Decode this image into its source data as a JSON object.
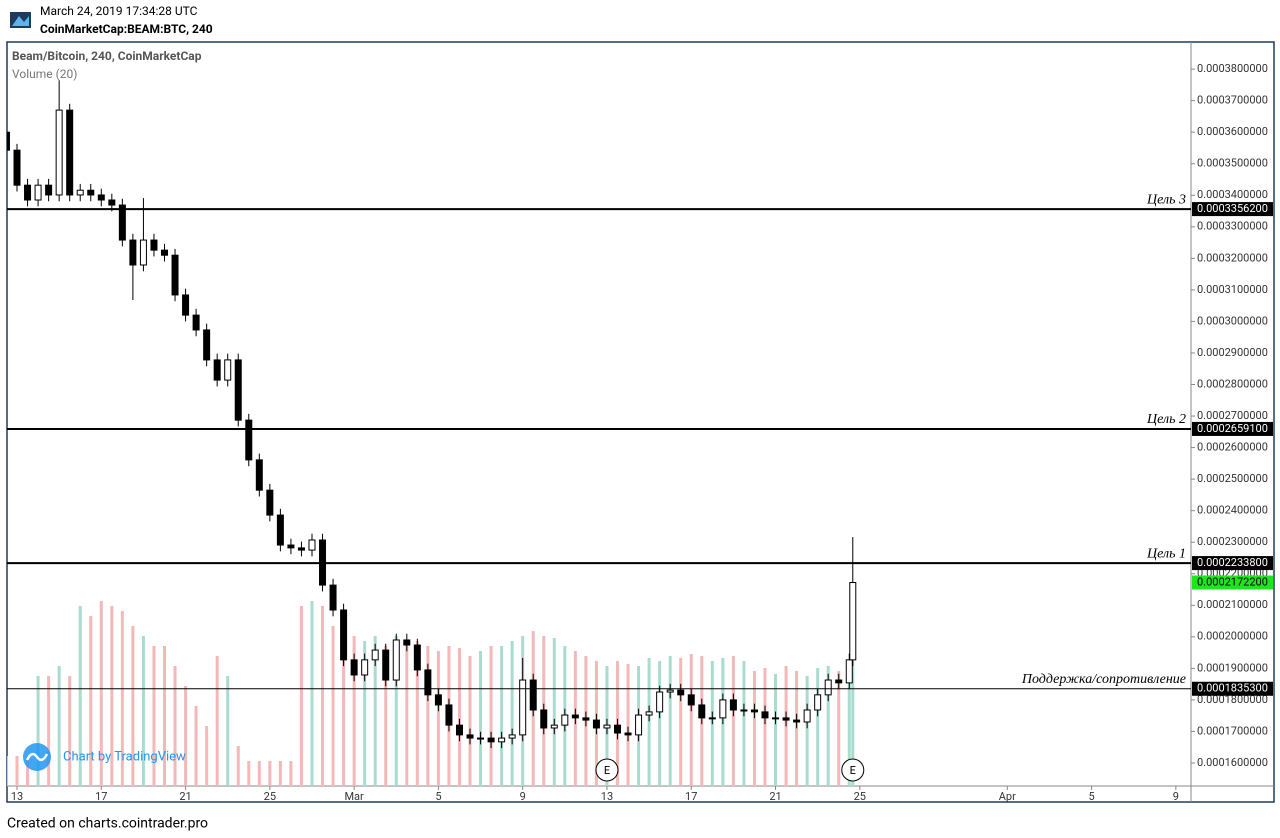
{
  "header": {
    "timestamp": "March 24, 2019 17:34:28 UTC",
    "symbol": "CoinMarketCap:BEAM:BTC, 240"
  },
  "chart_data": {
    "type": "candlestick",
    "title": "Beam/Bitcoin, 240, CoinMarketCap",
    "volume_title": "Volume (20)",
    "watermark": "Chart by TradingView",
    "x": [
      "2019-02-12 12:00",
      "2019-02-13 00:00",
      "2019-02-13 12:00",
      "2019-02-14 00:00",
      "2019-02-14 12:00",
      "2019-02-15 00:00",
      "2019-02-15 12:00",
      "2019-02-16 00:00",
      "2019-02-16 12:00",
      "2019-02-17 00:00",
      "2019-02-17 12:00",
      "2019-02-18 00:00",
      "2019-02-18 12:00",
      "2019-02-19 00:00",
      "2019-02-19 12:00",
      "2019-02-20 00:00",
      "2019-02-20 12:00",
      "2019-02-21 00:00",
      "2019-02-21 12:00",
      "2019-02-22 00:00",
      "2019-02-22 12:00",
      "2019-02-23 00:00",
      "2019-02-23 12:00",
      "2019-02-24 00:00",
      "2019-02-24 12:00",
      "2019-02-25 00:00",
      "2019-02-25 12:00",
      "2019-02-26 00:00",
      "2019-02-26 12:00",
      "2019-02-27 00:00",
      "2019-02-27 12:00",
      "2019-02-28 00:00",
      "2019-02-28 12:00",
      "2019-03-01 00:00",
      "2019-03-01 12:00",
      "2019-03-02 00:00",
      "2019-03-02 12:00",
      "2019-03-03 00:00",
      "2019-03-03 12:00",
      "2019-03-04 00:00",
      "2019-03-04 12:00",
      "2019-03-05 00:00",
      "2019-03-05 12:00",
      "2019-03-06 00:00",
      "2019-03-06 12:00",
      "2019-03-07 00:00",
      "2019-03-07 12:00",
      "2019-03-08 00:00",
      "2019-03-08 12:00",
      "2019-03-09 00:00",
      "2019-03-09 12:00",
      "2019-03-10 00:00",
      "2019-03-10 12:00",
      "2019-03-11 00:00",
      "2019-03-11 12:00",
      "2019-03-12 00:00",
      "2019-03-12 12:00",
      "2019-03-13 00:00",
      "2019-03-13 12:00",
      "2019-03-14 00:00",
      "2019-03-14 12:00",
      "2019-03-15 00:00",
      "2019-03-15 12:00",
      "2019-03-16 00:00",
      "2019-03-16 12:00",
      "2019-03-17 00:00",
      "2019-03-17 12:00",
      "2019-03-18 00:00",
      "2019-03-18 12:00",
      "2019-03-19 00:00",
      "2019-03-19 12:00",
      "2019-03-20 00:00",
      "2019-03-20 12:00",
      "2019-03-21 00:00",
      "2019-03-21 12:00",
      "2019-03-22 00:00",
      "2019-03-22 12:00",
      "2019-03-23 00:00",
      "2019-03-23 12:00",
      "2019-03-24 00:00",
      "2019-03-24 12:00",
      "2019-03-24 16:00"
    ],
    "open": [
      0.00036,
      0.0003543,
      0.0003432,
      0.0003385,
      0.0003432,
      0.0003401,
      0.000367,
      0.0003401,
      0.0003416,
      0.0003401,
      0.0003385,
      0.0003369,
      0.0003258,
      0.0003179,
      0.0003258,
      0.0003226,
      0.000321,
      0.0003084,
      0.000302,
      0.0002973,
      0.0002878,
      0.0002814,
      0.0002878,
      0.0002687,
      0.0002561,
      0.0002465,
      0.0002386,
      0.0002291,
      0.0002282,
      0.0002275,
      0.0002307,
      0.0002164,
      0.0002085,
      0.0001927,
      0.0001879,
      0.0001927,
      0.0001958,
      0.0001863,
      0.000199,
      0.0001974,
      0.0001895,
      0.0001816,
      0.0001784,
      0.000172,
      0.0001689,
      0.0001679,
      0.0001679,
      0.0001667,
      0.0001679,
      0.0001689,
      0.0001863,
      0.0001768,
      0.0001711,
      0.000172,
      0.0001752,
      0.0001743,
      0.0001736,
      0.0001711,
      0.000172,
      0.0001695,
      0.0001689,
      0.0001752,
      0.0001762,
      0.0001825,
      0.0001831,
      0.0001816,
      0.0001784,
      0.0001743,
      0.0001743,
      0.00018,
      0.0001768,
      0.0001768,
      0.0001762,
      0.0001743,
      0.0001743,
      0.0001736,
      0.000173,
      0.0001768,
      0.0001816,
      0.0001863,
      0.0001854,
      0.0001927
    ],
    "high": [
      0.000365,
      0.0003563,
      0.0003452,
      0.0003452,
      0.0003452,
      0.0003765,
      0.000369,
      0.0003436,
      0.0003436,
      0.0003421,
      0.0003405,
      0.0003389,
      0.0003278,
      0.0003391,
      0.0003278,
      0.0003246,
      0.000323,
      0.0003104,
      0.000304,
      0.0002993,
      0.0002898,
      0.0002898,
      0.0002898,
      0.0002707,
      0.0002581,
      0.0002485,
      0.0002406,
      0.0002311,
      0.0002302,
      0.0002327,
      0.0002327,
      0.0002184,
      0.0002105,
      0.0001947,
      0.0001947,
      0.0001978,
      0.0001978,
      0.000201,
      0.000201,
      0.0001994,
      0.0001915,
      0.0001836,
      0.0001804,
      0.000174,
      0.0001709,
      0.0001699,
      0.0001699,
      0.0001699,
      0.0001709,
      0.0001933,
      0.0001883,
      0.0001788,
      0.000174,
      0.0001772,
      0.0001772,
      0.0001763,
      0.0001756,
      0.000174,
      0.000174,
      0.0001715,
      0.0001772,
      0.0001782,
      0.0001845,
      0.0001851,
      0.0001851,
      0.0001836,
      0.0001804,
      0.0001763,
      0.000182,
      0.000182,
      0.0001788,
      0.0001788,
      0.0001782,
      0.0001763,
      0.0001763,
      0.0001756,
      0.0001788,
      0.0001836,
      0.0001883,
      0.0001883,
      0.0001947,
      0.0002316
    ],
    "low": [
      0.000348,
      0.0003412,
      0.0003365,
      0.0003365,
      0.0003381,
      0.0003381,
      0.0003381,
      0.0003381,
      0.0003381,
      0.0003365,
      0.0003349,
      0.0003238,
      0.0003068,
      0.0003159,
      0.0003206,
      0.000319,
      0.0003064,
      0.0003,
      0.0002953,
      0.0002858,
      0.0002794,
      0.0002794,
      0.0002667,
      0.0002541,
      0.0002445,
      0.0002366,
      0.0002271,
      0.0002262,
      0.0002255,
      0.0002255,
      0.0002144,
      0.0002065,
      0.0001907,
      0.0001859,
      0.0001859,
      0.0001907,
      0.0001843,
      0.0001843,
      0.0001954,
      0.0001875,
      0.0001796,
      0.0001764,
      0.00017,
      0.0001669,
      0.0001659,
      0.0001659,
      0.0001647,
      0.0001647,
      0.0001659,
      0.0001669,
      0.0001748,
      0.0001691,
      0.0001691,
      0.00017,
      0.0001723,
      0.0001716,
      0.0001691,
      0.0001691,
      0.0001675,
      0.0001669,
      0.0001669,
      0.0001732,
      0.0001742,
      0.0001805,
      0.0001796,
      0.0001764,
      0.0001723,
      0.0001723,
      0.0001723,
      0.0001748,
      0.0001748,
      0.0001742,
      0.0001723,
      0.0001723,
      0.0001716,
      0.000171,
      0.000171,
      0.0001748,
      0.0001796,
      0.0001834,
      0.0001834,
      0.0001907
    ],
    "close": [
      0.0003543,
      0.0003432,
      0.0003385,
      0.0003432,
      0.0003401,
      0.000367,
      0.0003401,
      0.0003416,
      0.0003401,
      0.0003385,
      0.0003369,
      0.0003258,
      0.0003179,
      0.0003258,
      0.0003226,
      0.000321,
      0.0003084,
      0.000302,
      0.0002973,
      0.0002878,
      0.0002814,
      0.0002878,
      0.0002687,
      0.0002561,
      0.0002465,
      0.0002386,
      0.0002291,
      0.0002282,
      0.0002275,
      0.0002307,
      0.0002164,
      0.0002085,
      0.0001927,
      0.0001879,
      0.0001927,
      0.0001958,
      0.0001863,
      0.000199,
      0.0001974,
      0.0001895,
      0.0001816,
      0.0001784,
      0.000172,
      0.0001689,
      0.0001679,
      0.0001679,
      0.0001667,
      0.0001679,
      0.0001689,
      0.0001863,
      0.0001768,
      0.0001711,
      0.000172,
      0.0001752,
      0.0001743,
      0.0001736,
      0.0001711,
      0.000172,
      0.0001695,
      0.0001689,
      0.0001752,
      0.0001762,
      0.0001825,
      0.0001831,
      0.0001816,
      0.0001784,
      0.0001743,
      0.0001743,
      0.00018,
      0.0001768,
      0.0001768,
      0.0001762,
      0.0001743,
      0.0001743,
      0.0001736,
      0.000173,
      0.0001768,
      0.0001816,
      0.0001863,
      0.0001854,
      0.0001927,
      0.00021722
    ],
    "volume": [
      30,
      30,
      30,
      110,
      110,
      120,
      110,
      180,
      170,
      185,
      180,
      175,
      160,
      150,
      140,
      140,
      120,
      100,
      80,
      60,
      130,
      110,
      40,
      25,
      25,
      25,
      25,
      25,
      180,
      185,
      180,
      160,
      150,
      150,
      145,
      150,
      140,
      150,
      145,
      145,
      140,
      135,
      140,
      138,
      130,
      135,
      140,
      140,
      145,
      150,
      155,
      150,
      148,
      140,
      135,
      130,
      125,
      120,
      125,
      122,
      120,
      128,
      125,
      130,
      128,
      132,
      130,
      125,
      128,
      130,
      125,
      115,
      118,
      112,
      120,
      115,
      110,
      118,
      120,
      115,
      120,
      125
    ],
    "up_color": "#ffffff",
    "down_color": "#000000",
    "wick_color": "#000000",
    "volume_up_color": "#a9dccf",
    "volume_down_color": "#f4b8b8",
    "xlim": [
      "2019-02-12 12:36",
      "2019-04-09 17:15"
    ],
    "xticks": [
      {
        "value": "2019-02-13",
        "label": "13"
      },
      {
        "value": "2019-02-17",
        "label": "17"
      },
      {
        "value": "2019-02-21",
        "label": "21"
      },
      {
        "value": "2019-02-25",
        "label": "25"
      },
      {
        "value": "2019-03-01",
        "label": "Mar"
      },
      {
        "value": "2019-03-05",
        "label": "5"
      },
      {
        "value": "2019-03-09",
        "label": "9"
      },
      {
        "value": "2019-03-13",
        "label": "13"
      },
      {
        "value": "2019-03-17",
        "label": "17"
      },
      {
        "value": "2019-03-21",
        "label": "21"
      },
      {
        "value": "2019-03-25",
        "label": "25"
      },
      {
        "value": "2019-04-01",
        "label": "Apr"
      },
      {
        "value": "2019-04-05",
        "label": "5"
      },
      {
        "value": "2019-04-09",
        "label": "9"
      }
    ],
    "ylim": [
      0.0001527,
      0.0003886
    ],
    "yticks": [
      {
        "value": 0.00016,
        "label": "0.0001600000"
      },
      {
        "value": 0.00017,
        "label": "0.0001700000"
      },
      {
        "value": 0.00018,
        "label": "0.0001800000"
      },
      {
        "value": 0.00019,
        "label": "0.0001900000"
      },
      {
        "value": 0.0002,
        "label": "0.0002000000"
      },
      {
        "value": 0.00021,
        "label": "0.0002100000"
      },
      {
        "value": 0.00022,
        "label": "0.0002200000"
      },
      {
        "value": 0.00023,
        "label": "0.0002300000"
      },
      {
        "value": 0.00024,
        "label": "0.0002400000"
      },
      {
        "value": 0.00025,
        "label": "0.0002500000"
      },
      {
        "value": 0.00026,
        "label": "0.0002600000"
      },
      {
        "value": 0.00027,
        "label": "0.0002700000"
      },
      {
        "value": 0.00028,
        "label": "0.0002800000"
      },
      {
        "value": 0.00029,
        "label": "0.0002900000"
      },
      {
        "value": 0.0003,
        "label": "0.0003000000"
      },
      {
        "value": 0.00031,
        "label": "0.0003100000"
      },
      {
        "value": 0.00032,
        "label": "0.0003200000"
      },
      {
        "value": 0.00033,
        "label": "0.0003300000"
      },
      {
        "value": 0.00034,
        "label": "0.0003400000"
      },
      {
        "value": 0.00035,
        "label": "0.0003500000"
      },
      {
        "value": 0.00036,
        "label": "0.0003600000"
      },
      {
        "value": 0.00037,
        "label": "0.0003700000"
      },
      {
        "value": 0.00038,
        "label": "0.0003800000"
      }
    ],
    "levels": [
      {
        "name": "Цель 3",
        "value": 0.00033562,
        "label": "0.0003356200",
        "line_width": 2
      },
      {
        "name": "Цель 2",
        "value": 0.00026591,
        "label": "0.0002659100",
        "line_width": 2
      },
      {
        "name": "Цель 1",
        "value": 0.00022338,
        "label": "0.0002233800",
        "line_width": 2
      },
      {
        "name": "Поддержка/сопротивление",
        "value": 0.00018353,
        "label": "0.0001835300",
        "line_width": 1
      }
    ],
    "last_price": {
      "value": 0.00021722,
      "label": "0.0002172200",
      "color": "#1ee61e"
    },
    "events": [
      {
        "x": "2019-03-13 00:00",
        "label": "E"
      },
      {
        "x": "2019-03-24 16:00",
        "label": "E"
      }
    ]
  },
  "footer": "Created on charts.cointrader.pro"
}
